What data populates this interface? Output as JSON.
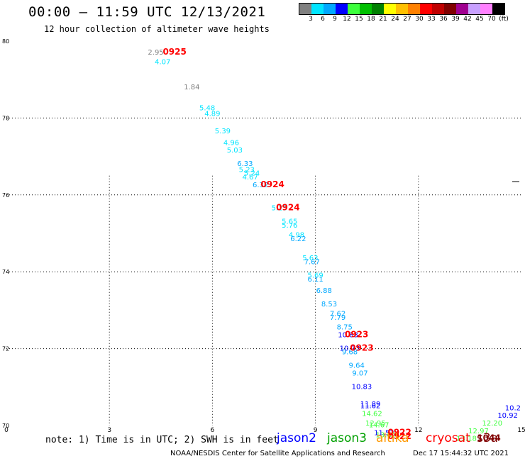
{
  "header": {
    "title": "00:00 – 11:59 UTC 12/13/2021",
    "subtitle": "12 hour collection of altimeter wave heights"
  },
  "scale": {
    "colors": [
      "#808080",
      "#00e5ff",
      "#00a8ff",
      "#0000ff",
      "#3dff3d",
      "#00c000",
      "#008000",
      "#ffff00",
      "#ffc000",
      "#ff8000",
      "#ff0000",
      "#c00000",
      "#800000",
      "#a00090",
      "#c8a0ff",
      "#ff80ff",
      "#000000"
    ],
    "labels": [
      "3",
      "6",
      "9",
      "12",
      "15",
      "18",
      "21",
      "24",
      "27",
      "30",
      "33",
      "36",
      "39",
      "42",
      "45",
      "70",
      "(ft)"
    ]
  },
  "chart_data": {
    "type": "scatter",
    "xlim": [
      0,
      15
    ],
    "ylim": [
      70,
      80
    ],
    "x_ticks": [
      "0",
      "3",
      "6",
      "9",
      "12",
      "15"
    ],
    "y_ticks": [
      "70",
      "72",
      "74",
      "76",
      "78",
      "80"
    ],
    "grid": true,
    "points": [
      {
        "x": 4.35,
        "y": 79.65,
        "label": "2.95",
        "color": "#808080"
      },
      {
        "x": 4.55,
        "y": 79.4,
        "label": "4.07",
        "color": "#00e5ff"
      },
      {
        "x": 5.4,
        "y": 78.75,
        "label": "1.84",
        "color": "#808080"
      },
      {
        "x": 5.85,
        "y": 78.2,
        "label": "5.48",
        "color": "#00e5ff"
      },
      {
        "x": 6.0,
        "y": 78.05,
        "label": "4.89",
        "color": "#00e5ff"
      },
      {
        "x": 6.3,
        "y": 77.6,
        "label": "5.39",
        "color": "#00e5ff"
      },
      {
        "x": 6.55,
        "y": 77.3,
        "label": "4.96",
        "color": "#00e5ff"
      },
      {
        "x": 6.65,
        "y": 77.1,
        "label": "5.03",
        "color": "#00e5ff"
      },
      {
        "x": 6.95,
        "y": 76.75,
        "label": "6.33",
        "color": "#00a8ff"
      },
      {
        "x": 7.0,
        "y": 76.6,
        "label": "5.23",
        "color": "#00e5ff"
      },
      {
        "x": 7.15,
        "y": 76.5,
        "label": "5.24",
        "color": "#00e5ff"
      },
      {
        "x": 7.1,
        "y": 76.4,
        "label": "4.67",
        "color": "#00e5ff"
      },
      {
        "x": 7.4,
        "y": 76.2,
        "label": "6.32",
        "color": "#00a8ff"
      },
      {
        "x": 7.95,
        "y": 75.6,
        "label": "5.25",
        "color": "#00e5ff"
      },
      {
        "x": 8.25,
        "y": 75.25,
        "label": "5.65",
        "color": "#00e5ff"
      },
      {
        "x": 8.25,
        "y": 75.15,
        "label": "5.76",
        "color": "#00e5ff"
      },
      {
        "x": 8.45,
        "y": 74.9,
        "label": "4.98",
        "color": "#00e5ff"
      },
      {
        "x": 8.5,
        "y": 74.8,
        "label": "6.22",
        "color": "#00a8ff"
      },
      {
        "x": 8.85,
        "y": 74.3,
        "label": "5.63",
        "color": "#00e5ff"
      },
      {
        "x": 8.9,
        "y": 74.2,
        "label": "7.67",
        "color": "#00a8ff"
      },
      {
        "x": 9.0,
        "y": 73.85,
        "label": "5.69",
        "color": "#00e5ff"
      },
      {
        "x": 9.0,
        "y": 73.75,
        "label": "6.11",
        "color": "#00a8ff"
      },
      {
        "x": 9.25,
        "y": 73.45,
        "label": "6.88",
        "color": "#00a8ff"
      },
      {
        "x": 9.4,
        "y": 73.1,
        "label": "8.53",
        "color": "#00a8ff"
      },
      {
        "x": 9.65,
        "y": 72.85,
        "label": "7.62",
        "color": "#00a8ff"
      },
      {
        "x": 9.65,
        "y": 72.75,
        "label": "7.79",
        "color": "#00a8ff"
      },
      {
        "x": 9.85,
        "y": 72.5,
        "label": "8.75",
        "color": "#00a8ff"
      },
      {
        "x": 9.95,
        "y": 72.3,
        "label": "10.83",
        "color": "#0000ff"
      },
      {
        "x": 10.0,
        "y": 71.95,
        "label": "10.73",
        "color": "#0000ff"
      },
      {
        "x": 10.0,
        "y": 71.85,
        "label": "9.68",
        "color": "#00a8ff"
      },
      {
        "x": 10.2,
        "y": 71.5,
        "label": "9.64",
        "color": "#00a8ff"
      },
      {
        "x": 10.3,
        "y": 71.3,
        "label": "9.07",
        "color": "#00a8ff"
      },
      {
        "x": 10.35,
        "y": 70.95,
        "label": "10.83",
        "color": "#0000ff"
      },
      {
        "x": 10.6,
        "y": 70.5,
        "label": "11.89",
        "color": "#0000ff"
      },
      {
        "x": 10.6,
        "y": 70.45,
        "label": "11.62",
        "color": "#0000ff"
      },
      {
        "x": 10.65,
        "y": 70.25,
        "label": "14.62",
        "color": "#3dff3d"
      },
      {
        "x": 10.75,
        "y": 70.0,
        "label": "12.95",
        "color": "#3dff3d"
      },
      {
        "x": 10.85,
        "y": 69.95,
        "label": "14.67",
        "color": "#3dff3d"
      },
      {
        "x": 11.0,
        "y": 69.75,
        "label": "11.52",
        "color": "#0000ff"
      },
      {
        "x": 11.05,
        "y": 69.7,
        "label": "13.62",
        "color": "#3dff3d"
      },
      {
        "x": 14.75,
        "y": 70.4,
        "label": "10.2",
        "color": "#0000ff"
      },
      {
        "x": 14.6,
        "y": 70.2,
        "label": "10.92",
        "color": "#0000ff"
      },
      {
        "x": 14.15,
        "y": 70.0,
        "label": "12.20",
        "color": "#3dff3d"
      },
      {
        "x": 13.75,
        "y": 69.8,
        "label": "12.97",
        "color": "#3dff3d"
      },
      {
        "x": 13.4,
        "y": 69.6,
        "label": "13.18",
        "color": "#3dff3d"
      }
    ],
    "time_labels": [
      {
        "x": 4.9,
        "y": 79.65,
        "label": "0925",
        "color": "#ff0000"
      },
      {
        "x": 7.75,
        "y": 76.2,
        "label": "0924",
        "color": "#ff0000"
      },
      {
        "x": 8.2,
        "y": 75.6,
        "label": "0924",
        "color": "#ff0000"
      },
      {
        "x": 10.2,
        "y": 72.3,
        "label": "0923",
        "color": "#ff0000"
      },
      {
        "x": 10.35,
        "y": 71.95,
        "label": "0923",
        "color": "#ff0000"
      },
      {
        "x": 11.45,
        "y": 69.75,
        "label": "0922",
        "color": "#ff0000"
      },
      {
        "x": 11.45,
        "y": 69.65,
        "label": "0922",
        "color": "#ff0000"
      },
      {
        "x": 14.05,
        "y": 69.6,
        "label": "1044",
        "color": "#800000"
      }
    ]
  },
  "note": "note: 1) Time is in UTC; 2) SWH is in feet",
  "legend": [
    {
      "label": "jason2",
      "color": "#0000ff"
    },
    {
      "label": "jason3",
      "color": "#00a000"
    },
    {
      "label": "altika",
      "color": "#ff9900"
    },
    {
      "label": "cryosat",
      "color": "#ff0000"
    },
    {
      "label": "s3a",
      "color": "#800000"
    }
  ],
  "footer": {
    "credit": "NOAA/NESDIS Center for Satellite Applications and Research",
    "timestamp": "Dec 17 15:44:32 UTC 2021"
  }
}
